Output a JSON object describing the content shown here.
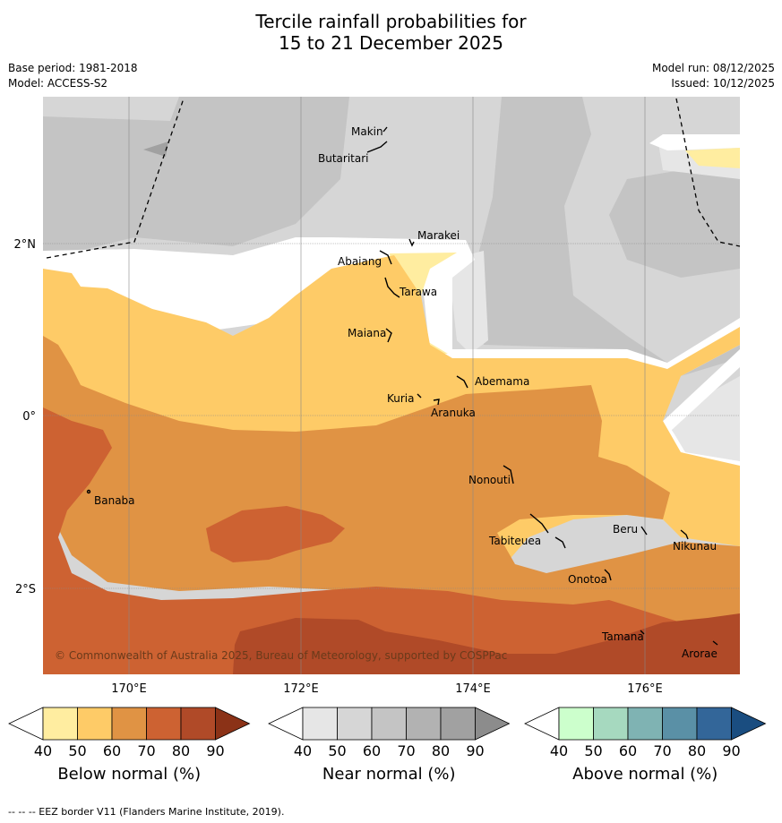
{
  "title": {
    "line1": "Tercile rainfall probabilities for",
    "line2": "15 to 21 December 2025"
  },
  "meta": {
    "base_period": "Base period: 1981-2018",
    "model": "Model: ACCESS-S2",
    "model_run": "Model run: 08/12/2025",
    "issued": "Issued: 10/12/2025"
  },
  "map": {
    "lat_labels": [
      "2°N",
      "0°",
      "2°S"
    ],
    "lon_labels": [
      "170°E",
      "172°E",
      "174°E",
      "176°E"
    ],
    "islands": [
      "Makin",
      "Butaritari",
      "Marakei",
      "Abaiang",
      "Tarawa",
      "Maiana",
      "Abemama",
      "Kuria",
      "Aranuka",
      "Banaba",
      "Nonouti",
      "Tabiteuea",
      "Beru",
      "Nikunau",
      "Onotoa",
      "Tamana",
      "Arorae"
    ],
    "copyright": "© Commonwealth of Australia 2025, Bureau of Meteorology, supported by COSPPac"
  },
  "legend": {
    "below": {
      "label": "Below normal (%)",
      "ticks": [
        "40",
        "50",
        "60",
        "70",
        "80",
        "90"
      ],
      "colors": [
        "#ffeda0",
        "#fecb67",
        "#e09344",
        "#cd6232",
        "#b04a28",
        "#8b3217"
      ]
    },
    "near": {
      "label": "Near normal (%)",
      "ticks": [
        "40",
        "50",
        "60",
        "70",
        "80",
        "90"
      ],
      "colors": [
        "#e6e6e6",
        "#d6d6d6",
        "#c4c4c4",
        "#b2b2b2",
        "#a1a1a1",
        "#8c8c8c"
      ]
    },
    "above": {
      "label": "Above normal (%)",
      "ticks": [
        "40",
        "50",
        "60",
        "70",
        "80",
        "90"
      ],
      "colors": [
        "#ccffcc",
        "#a6d9bf",
        "#7fb3b3",
        "#5a90a6",
        "#336699",
        "#1a4d80"
      ]
    }
  },
  "footnote": "-- -- -- EEZ border V11 (Flanders Marine Institute, 2019)."
}
